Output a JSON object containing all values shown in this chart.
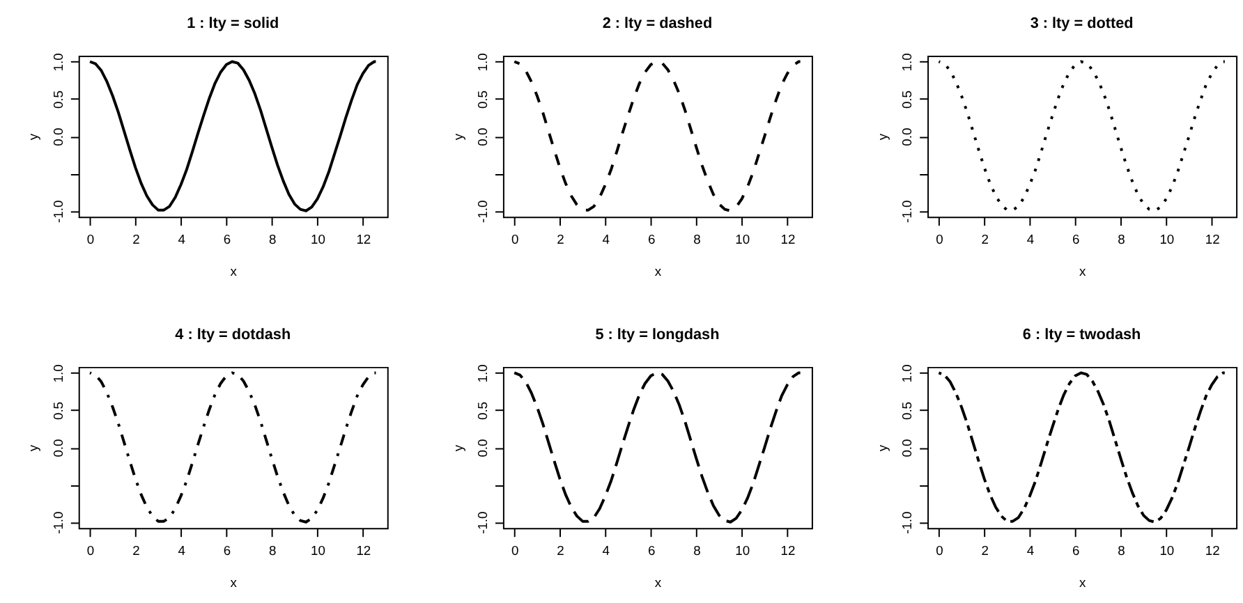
{
  "chart_data": [
    {
      "type": "line",
      "title": "1 : lty = solid",
      "xlabel": "x",
      "ylabel": "y",
      "line_style": "solid",
      "x": [
        0,
        0.25,
        0.5,
        0.75,
        1,
        1.25,
        1.5,
        1.75,
        2,
        2.25,
        2.5,
        2.75,
        3,
        3.25,
        3.5,
        3.75,
        4,
        4.25,
        4.5,
        4.75,
        5,
        5.25,
        5.5,
        5.75,
        6,
        6.25,
        6.5,
        6.75,
        7,
        7.25,
        7.5,
        7.75,
        8,
        8.25,
        8.5,
        8.75,
        9,
        9.25,
        9.5,
        9.75,
        10,
        10.25,
        10.5,
        10.75,
        11,
        11.25,
        11.5,
        11.75,
        12,
        12.25,
        12.5,
        12.57
      ],
      "series": [
        {
          "color": "#000000",
          "values": [
            1.0,
            0.97,
            0.88,
            0.73,
            0.54,
            0.32,
            0.07,
            -0.18,
            -0.42,
            -0.63,
            -0.8,
            -0.92,
            -0.99,
            -0.99,
            -0.94,
            -0.82,
            -0.65,
            -0.45,
            -0.21,
            0.04,
            0.28,
            0.51,
            0.71,
            0.86,
            0.96,
            1.0,
            0.98,
            0.89,
            0.75,
            0.57,
            0.35,
            0.1,
            -0.15,
            -0.39,
            -0.6,
            -0.78,
            -0.91,
            -0.98,
            -1.0,
            -0.95,
            -0.84,
            -0.68,
            -0.48,
            -0.24,
            0.0,
            0.25,
            0.48,
            0.69,
            0.84,
            0.95,
            1.0,
            1.0
          ]
        }
      ],
      "xlim": [
        -0.5,
        13.07
      ],
      "ylim": [
        -1.08,
        1.08
      ],
      "xticks": [
        0,
        2,
        4,
        6,
        8,
        10,
        12
      ],
      "yticks": [
        {
          "value": -1,
          "label": "-1.0"
        },
        {
          "value": -0.5,
          "label": null
        },
        {
          "value": 0,
          "label": "0.0"
        },
        {
          "value": 0.5,
          "label": "0.5"
        },
        {
          "value": 1,
          "label": "1.0"
        }
      ]
    },
    {
      "type": "line",
      "title": "2 : lty = dashed",
      "xlabel": "x",
      "ylabel": "y",
      "line_style": "dashed",
      "x": [
        0,
        0.25,
        0.5,
        0.75,
        1,
        1.25,
        1.5,
        1.75,
        2,
        2.25,
        2.5,
        2.75,
        3,
        3.25,
        3.5,
        3.75,
        4,
        4.25,
        4.5,
        4.75,
        5,
        5.25,
        5.5,
        5.75,
        6,
        6.25,
        6.5,
        6.75,
        7,
        7.25,
        7.5,
        7.75,
        8,
        8.25,
        8.5,
        8.75,
        9,
        9.25,
        9.5,
        9.75,
        10,
        10.25,
        10.5,
        10.75,
        11,
        11.25,
        11.5,
        11.75,
        12,
        12.25,
        12.5,
        12.57
      ],
      "series": [
        {
          "color": "#000000",
          "values": [
            1.0,
            0.97,
            0.88,
            0.73,
            0.54,
            0.32,
            0.07,
            -0.18,
            -0.42,
            -0.63,
            -0.8,
            -0.92,
            -0.99,
            -0.99,
            -0.94,
            -0.82,
            -0.65,
            -0.45,
            -0.21,
            0.04,
            0.28,
            0.51,
            0.71,
            0.86,
            0.96,
            1.0,
            0.98,
            0.89,
            0.75,
            0.57,
            0.35,
            0.1,
            -0.15,
            -0.39,
            -0.6,
            -0.78,
            -0.91,
            -0.98,
            -1.0,
            -0.95,
            -0.84,
            -0.68,
            -0.48,
            -0.24,
            0.0,
            0.25,
            0.48,
            0.69,
            0.84,
            0.95,
            1.0,
            1.0
          ]
        }
      ],
      "xlim": [
        -0.5,
        13.07
      ],
      "ylim": [
        -1.08,
        1.08
      ],
      "xticks": [
        0,
        2,
        4,
        6,
        8,
        10,
        12
      ],
      "yticks": [
        {
          "value": -1,
          "label": "-1.0"
        },
        {
          "value": -0.5,
          "label": null
        },
        {
          "value": 0,
          "label": "0.0"
        },
        {
          "value": 0.5,
          "label": "0.5"
        },
        {
          "value": 1,
          "label": "1.0"
        }
      ]
    },
    {
      "type": "line",
      "title": "3 : lty = dotted",
      "xlabel": "x",
      "ylabel": "y",
      "line_style": "dotted",
      "x": [
        0,
        0.25,
        0.5,
        0.75,
        1,
        1.25,
        1.5,
        1.75,
        2,
        2.25,
        2.5,
        2.75,
        3,
        3.25,
        3.5,
        3.75,
        4,
        4.25,
        4.5,
        4.75,
        5,
        5.25,
        5.5,
        5.75,
        6,
        6.25,
        6.5,
        6.75,
        7,
        7.25,
        7.5,
        7.75,
        8,
        8.25,
        8.5,
        8.75,
        9,
        9.25,
        9.5,
        9.75,
        10,
        10.25,
        10.5,
        10.75,
        11,
        11.25,
        11.5,
        11.75,
        12,
        12.25,
        12.5,
        12.57
      ],
      "series": [
        {
          "color": "#000000",
          "values": [
            1.0,
            0.97,
            0.88,
            0.73,
            0.54,
            0.32,
            0.07,
            -0.18,
            -0.42,
            -0.63,
            -0.8,
            -0.92,
            -0.99,
            -0.99,
            -0.94,
            -0.82,
            -0.65,
            -0.45,
            -0.21,
            0.04,
            0.28,
            0.51,
            0.71,
            0.86,
            0.96,
            1.0,
            0.98,
            0.89,
            0.75,
            0.57,
            0.35,
            0.1,
            -0.15,
            -0.39,
            -0.6,
            -0.78,
            -0.91,
            -0.98,
            -1.0,
            -0.95,
            -0.84,
            -0.68,
            -0.48,
            -0.24,
            0.0,
            0.25,
            0.48,
            0.69,
            0.84,
            0.95,
            1.0,
            1.0
          ]
        }
      ],
      "xlim": [
        -0.5,
        13.07
      ],
      "ylim": [
        -1.08,
        1.08
      ],
      "xticks": [
        0,
        2,
        4,
        6,
        8,
        10,
        12
      ],
      "yticks": [
        {
          "value": -1,
          "label": "-1.0"
        },
        {
          "value": -0.5,
          "label": null
        },
        {
          "value": 0,
          "label": "0.0"
        },
        {
          "value": 0.5,
          "label": "0.5"
        },
        {
          "value": 1,
          "label": "1.0"
        }
      ]
    },
    {
      "type": "line",
      "title": "4 : lty = dotdash",
      "xlabel": "x",
      "ylabel": "y",
      "line_style": "dotdash",
      "x": [
        0,
        0.25,
        0.5,
        0.75,
        1,
        1.25,
        1.5,
        1.75,
        2,
        2.25,
        2.5,
        2.75,
        3,
        3.25,
        3.5,
        3.75,
        4,
        4.25,
        4.5,
        4.75,
        5,
        5.25,
        5.5,
        5.75,
        6,
        6.25,
        6.5,
        6.75,
        7,
        7.25,
        7.5,
        7.75,
        8,
        8.25,
        8.5,
        8.75,
        9,
        9.25,
        9.5,
        9.75,
        10,
        10.25,
        10.5,
        10.75,
        11,
        11.25,
        11.5,
        11.75,
        12,
        12.25,
        12.5,
        12.57
      ],
      "series": [
        {
          "color": "#000000",
          "values": [
            1.0,
            0.97,
            0.88,
            0.73,
            0.54,
            0.32,
            0.07,
            -0.18,
            -0.42,
            -0.63,
            -0.8,
            -0.92,
            -0.99,
            -0.99,
            -0.94,
            -0.82,
            -0.65,
            -0.45,
            -0.21,
            0.04,
            0.28,
            0.51,
            0.71,
            0.86,
            0.96,
            1.0,
            0.98,
            0.89,
            0.75,
            0.57,
            0.35,
            0.1,
            -0.15,
            -0.39,
            -0.6,
            -0.78,
            -0.91,
            -0.98,
            -1.0,
            -0.95,
            -0.84,
            -0.68,
            -0.48,
            -0.24,
            0.0,
            0.25,
            0.48,
            0.69,
            0.84,
            0.95,
            1.0,
            1.0
          ]
        }
      ],
      "xlim": [
        -0.5,
        13.07
      ],
      "ylim": [
        -1.08,
        1.08
      ],
      "xticks": [
        0,
        2,
        4,
        6,
        8,
        10,
        12
      ],
      "yticks": [
        {
          "value": -1,
          "label": "-1.0"
        },
        {
          "value": -0.5,
          "label": null
        },
        {
          "value": 0,
          "label": "0.0"
        },
        {
          "value": 0.5,
          "label": "0.5"
        },
        {
          "value": 1,
          "label": "1.0"
        }
      ]
    },
    {
      "type": "line",
      "title": "5 : lty = longdash",
      "xlabel": "x",
      "ylabel": "y",
      "line_style": "longdash",
      "x": [
        0,
        0.25,
        0.5,
        0.75,
        1,
        1.25,
        1.5,
        1.75,
        2,
        2.25,
        2.5,
        2.75,
        3,
        3.25,
        3.5,
        3.75,
        4,
        4.25,
        4.5,
        4.75,
        5,
        5.25,
        5.5,
        5.75,
        6,
        6.25,
        6.5,
        6.75,
        7,
        7.25,
        7.5,
        7.75,
        8,
        8.25,
        8.5,
        8.75,
        9,
        9.25,
        9.5,
        9.75,
        10,
        10.25,
        10.5,
        10.75,
        11,
        11.25,
        11.5,
        11.75,
        12,
        12.25,
        12.5,
        12.57
      ],
      "series": [
        {
          "color": "#000000",
          "values": [
            1.0,
            0.97,
            0.88,
            0.73,
            0.54,
            0.32,
            0.07,
            -0.18,
            -0.42,
            -0.63,
            -0.8,
            -0.92,
            -0.99,
            -0.99,
            -0.94,
            -0.82,
            -0.65,
            -0.45,
            -0.21,
            0.04,
            0.28,
            0.51,
            0.71,
            0.86,
            0.96,
            1.0,
            0.98,
            0.89,
            0.75,
            0.57,
            0.35,
            0.1,
            -0.15,
            -0.39,
            -0.6,
            -0.78,
            -0.91,
            -0.98,
            -1.0,
            -0.95,
            -0.84,
            -0.68,
            -0.48,
            -0.24,
            0.0,
            0.25,
            0.48,
            0.69,
            0.84,
            0.95,
            1.0,
            1.0
          ]
        }
      ],
      "xlim": [
        -0.5,
        13.07
      ],
      "ylim": [
        -1.08,
        1.08
      ],
      "xticks": [
        0,
        2,
        4,
        6,
        8,
        10,
        12
      ],
      "yticks": [
        {
          "value": -1,
          "label": "-1.0"
        },
        {
          "value": -0.5,
          "label": null
        },
        {
          "value": 0,
          "label": "0.0"
        },
        {
          "value": 0.5,
          "label": "0.5"
        },
        {
          "value": 1,
          "label": "1.0"
        }
      ]
    },
    {
      "type": "line",
      "title": "6 : lty = twodash",
      "xlabel": "x",
      "ylabel": "y",
      "line_style": "twodash",
      "x": [
        0,
        0.25,
        0.5,
        0.75,
        1,
        1.25,
        1.5,
        1.75,
        2,
        2.25,
        2.5,
        2.75,
        3,
        3.25,
        3.5,
        3.75,
        4,
        4.25,
        4.5,
        4.75,
        5,
        5.25,
        5.5,
        5.75,
        6,
        6.25,
        6.5,
        6.75,
        7,
        7.25,
        7.5,
        7.75,
        8,
        8.25,
        8.5,
        8.75,
        9,
        9.25,
        9.5,
        9.75,
        10,
        10.25,
        10.5,
        10.75,
        11,
        11.25,
        11.5,
        11.75,
        12,
        12.25,
        12.5,
        12.57
      ],
      "series": [
        {
          "color": "#000000",
          "values": [
            1.0,
            0.97,
            0.88,
            0.73,
            0.54,
            0.32,
            0.07,
            -0.18,
            -0.42,
            -0.63,
            -0.8,
            -0.92,
            -0.99,
            -0.99,
            -0.94,
            -0.82,
            -0.65,
            -0.45,
            -0.21,
            0.04,
            0.28,
            0.51,
            0.71,
            0.86,
            0.96,
            1.0,
            0.98,
            0.89,
            0.75,
            0.57,
            0.35,
            0.1,
            -0.15,
            -0.39,
            -0.6,
            -0.78,
            -0.91,
            -0.98,
            -1.0,
            -0.95,
            -0.84,
            -0.68,
            -0.48,
            -0.24,
            0.0,
            0.25,
            0.48,
            0.69,
            0.84,
            0.95,
            1.0,
            1.0
          ]
        }
      ],
      "xlim": [
        -0.5,
        13.07
      ],
      "ylim": [
        -1.08,
        1.08
      ],
      "xticks": [
        0,
        2,
        4,
        6,
        8,
        10,
        12
      ],
      "yticks": [
        {
          "value": -1,
          "label": "-1.0"
        },
        {
          "value": -0.5,
          "label": null
        },
        {
          "value": 0,
          "label": "0.0"
        },
        {
          "value": 0.5,
          "label": "0.5"
        },
        {
          "value": 1,
          "label": "1.0"
        }
      ]
    }
  ]
}
